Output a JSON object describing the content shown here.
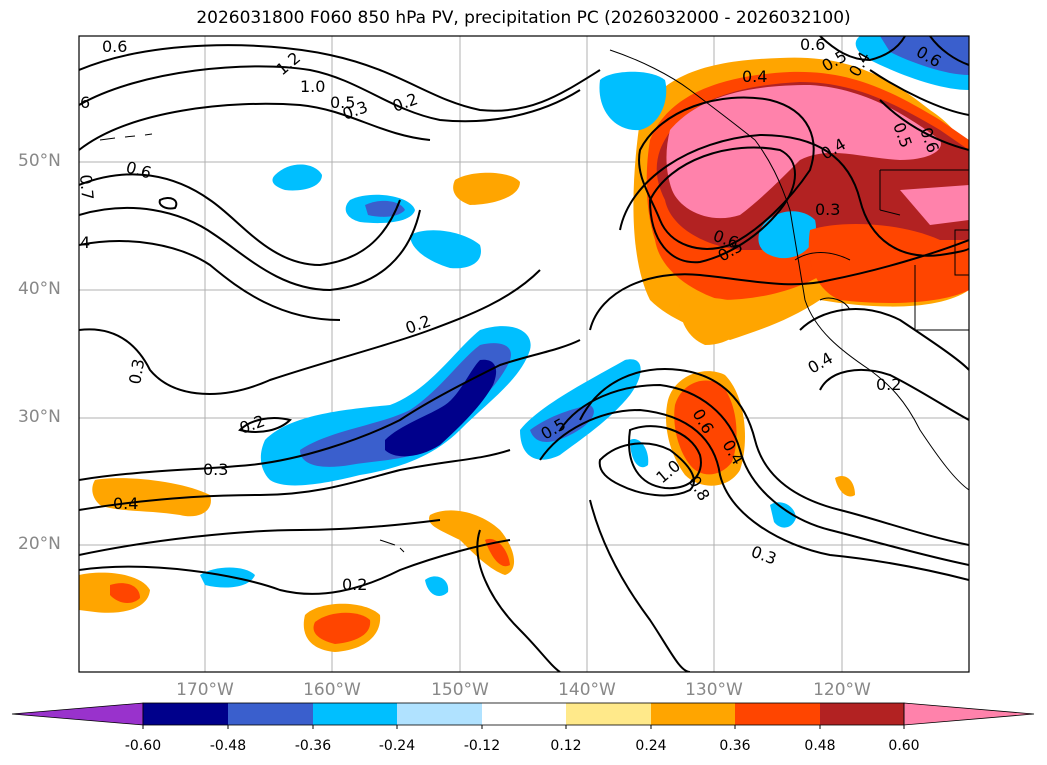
{
  "title": "2026031800 F060 850 hPa PV, precipitation PC (2026032000 - 2026032100)",
  "map": {
    "lat_labels": [
      "50°N",
      "40°N",
      "30°N",
      "20°N"
    ],
    "lon_labels": [
      "170°W",
      "160°W",
      "150°W",
      "140°W",
      "130°W",
      "120°W"
    ],
    "contour_labels": [
      "0.6",
      "1.2",
      "1.0",
      "0.5",
      "0.3",
      "0.2",
      "6",
      "0.6",
      "0.7",
      "4",
      "0.2",
      "0.3",
      "0.2",
      "0.3",
      "0.4",
      "0.2",
      "0.5",
      "1.0",
      "0.6",
      "0.4",
      "0.8",
      "0.3",
      "0.6",
      "0.5",
      "0.4",
      "0.5",
      "0.6",
      "0.4",
      "0.3",
      "0.6",
      "0.5",
      "0.4",
      "0.2",
      "0.6",
      "0.4"
    ]
  },
  "colorbar": {
    "ticks": [
      "-0.60",
      "-0.48",
      "-0.36",
      "-0.24",
      "-0.12",
      "0.12",
      "0.24",
      "0.36",
      "0.48",
      "0.60"
    ],
    "colors": {
      "under": "#9932cc",
      "bins": [
        "#00008b",
        "#3a5fcd",
        "#00bfff",
        "#b0e2ff",
        "#ffffff",
        "#ffe98a",
        "#ffa500",
        "#ff4500",
        "#b22222"
      ],
      "over": "#ff82ab"
    }
  }
}
